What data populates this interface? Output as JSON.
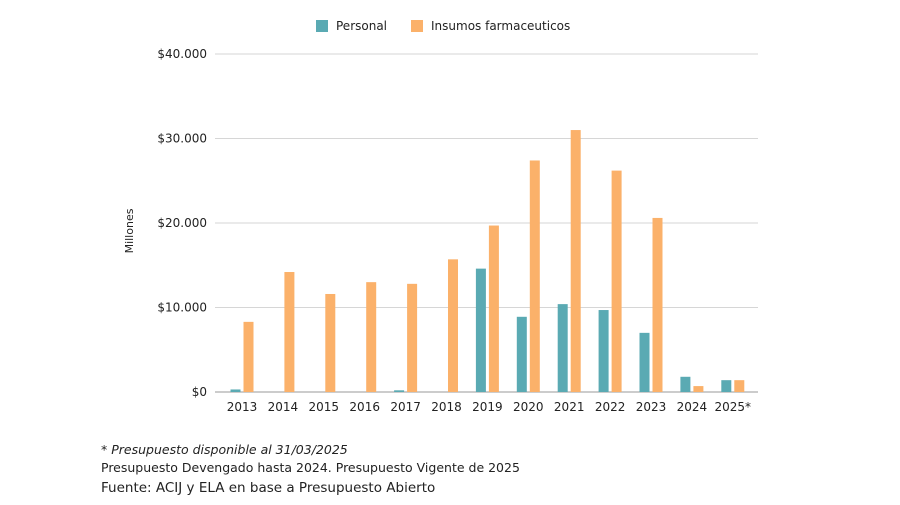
{
  "chart_data": {
    "type": "bar",
    "categories": [
      "2013",
      "2014",
      "2015",
      "2016",
      "2017",
      "2018",
      "2019",
      "2020",
      "2021",
      "2022",
      "2023",
      "2024",
      "2025*"
    ],
    "series": [
      {
        "name": "Personal",
        "color": "#5aaab3",
        "values": [
          300,
          0,
          0,
          0,
          200,
          0,
          14600,
          8900,
          10400,
          9700,
          7000,
          1800,
          1400
        ]
      },
      {
        "name": "Insumos farmaceuticos",
        "color": "#fbb16a",
        "values": [
          8300,
          14200,
          11600,
          13000,
          12800,
          15700,
          19700,
          27400,
          31000,
          26200,
          20600,
          700,
          1400
        ]
      }
    ],
    "ylabel": "Millones",
    "ylim": [
      0,
      40000
    ],
    "yticks": [
      0,
      10000,
      20000,
      30000,
      40000
    ],
    "ytick_labels": [
      "$0",
      "$10.000",
      "$20.000",
      "$30.000",
      "$40.000"
    ],
    "grid": true,
    "legend_position": "top-center"
  },
  "notes": {
    "footnote": "* Presupuesto disponible al 31/03/2025",
    "budget_note": "Presupuesto Devengado hasta 2024. Presupuesto Vigente de 2025",
    "source": "Fuente: ACIJ y ELA en base a Presupuesto Abierto"
  }
}
